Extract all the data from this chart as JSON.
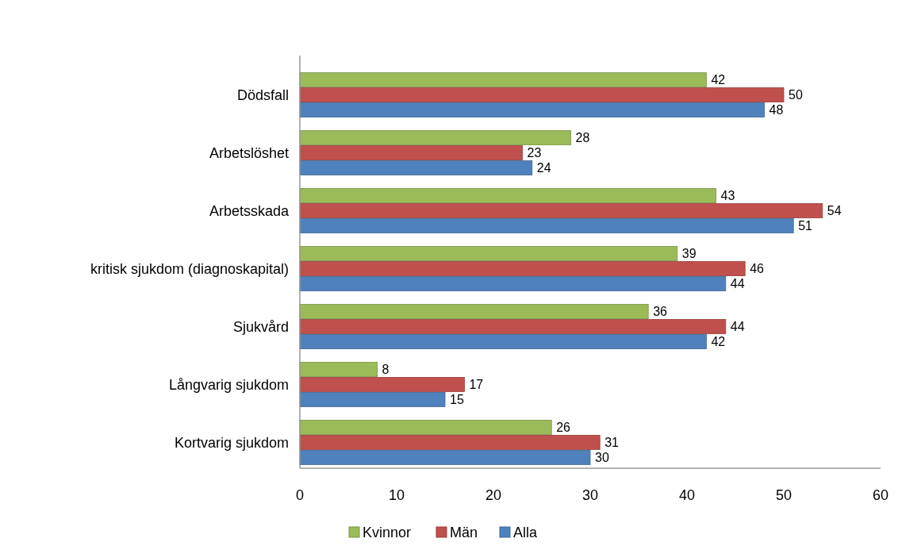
{
  "chart_data": {
    "type": "bar",
    "orientation": "horizontal",
    "categories": [
      "Dödsfall",
      "Arbetslöshet",
      "Arbetsskada",
      "kritisk sjukdom (diagnoskapital)",
      "Sjukvård",
      "Långvarig sjukdom",
      "Kortvarig sjukdom"
    ],
    "series": [
      {
        "name": "Kvinnor",
        "color": "#9bbb59",
        "values": [
          42,
          28,
          43,
          39,
          36,
          8,
          26
        ]
      },
      {
        "name": "Män",
        "color": "#c0504d",
        "values": [
          50,
          23,
          54,
          46,
          44,
          17,
          31
        ]
      },
      {
        "name": "Alla",
        "color": "#4f81bd",
        "values": [
          48,
          24,
          51,
          44,
          42,
          15,
          30
        ]
      }
    ],
    "xlim": [
      0,
      60
    ],
    "xticks": [
      0,
      10,
      20,
      30,
      40,
      50,
      60
    ],
    "data_labels": true,
    "grid": false,
    "legend": "bottom"
  }
}
